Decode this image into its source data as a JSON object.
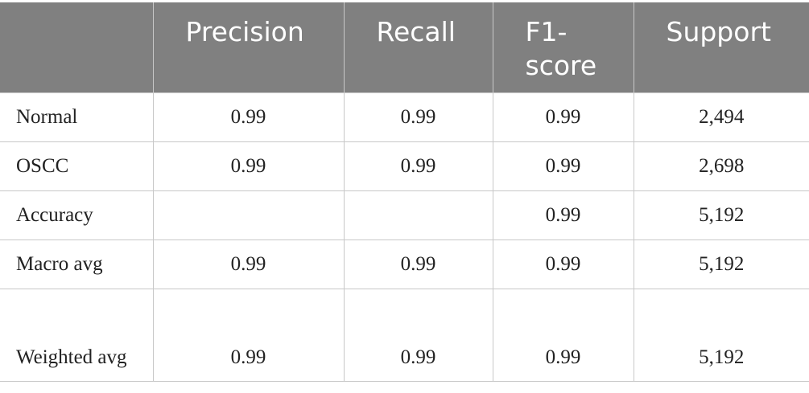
{
  "table": {
    "header": [
      null,
      "Precision",
      "Recall",
      "F1-score",
      "Support"
    ],
    "rows": [
      [
        "Normal",
        "0.99",
        "0.99",
        "0.99",
        "2,494"
      ],
      [
        "OSCC",
        "0.99",
        "0.99",
        "0.99",
        "2,698"
      ],
      [
        "Accuracy",
        null,
        null,
        "0.99",
        "5,192"
      ],
      [
        "Macro avg",
        "0.99",
        "0.99",
        "0.99",
        "5,192"
      ],
      [
        "Weighted avg",
        "0.99",
        "0.99",
        "0.99",
        "5,192"
      ]
    ]
  }
}
